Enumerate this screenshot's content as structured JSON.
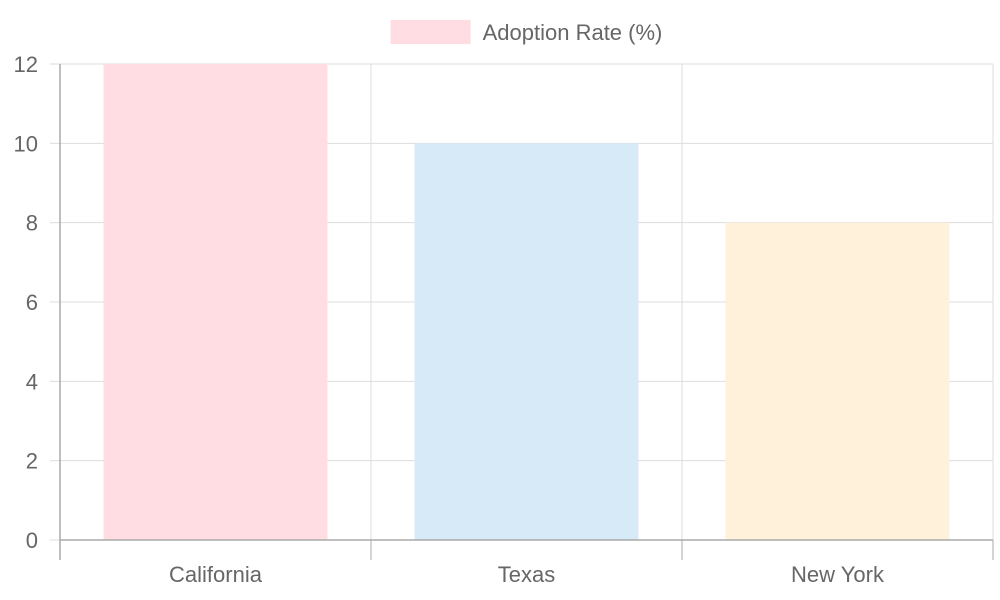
{
  "chart_data": {
    "type": "bar",
    "categories": [
      "California",
      "Texas",
      "New York"
    ],
    "series": [
      {
        "name": "Adoption Rate (%)",
        "values": [
          12,
          10,
          8
        ]
      }
    ],
    "bar_colors": [
      "#ffdde3",
      "#d7eaf8",
      "#fff1da"
    ],
    "legend_color": "#ffdde3",
    "ylim": [
      0,
      12
    ],
    "yticks": [
      "0",
      "2",
      "4",
      "6",
      "8",
      "10",
      "12"
    ],
    "legend_position": "top-center",
    "grid": true
  }
}
